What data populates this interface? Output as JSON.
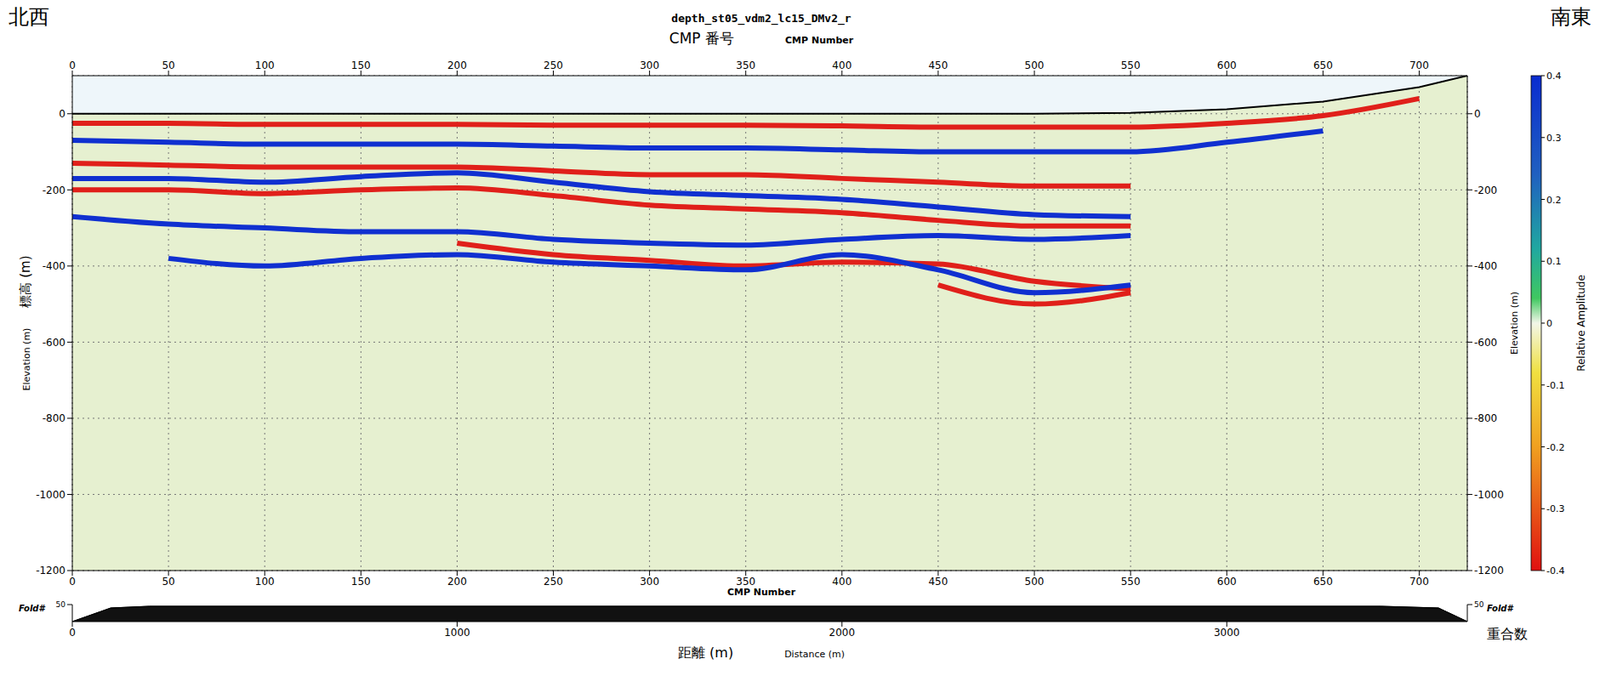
{
  "chart_data": {
    "type": "line",
    "title": "depth_st05_vdm2_lc15_DMv2_r",
    "annotations": {
      "left": "北西",
      "right": "南東"
    },
    "x_label": [
      "CMP 番号",
      "CMP Number"
    ],
    "y_label": [
      "標高 (m)",
      "Elevation (m)"
    ],
    "y2_label": "Elevation (m)",
    "x": [
      0,
      50,
      100,
      150,
      200,
      250,
      300,
      350,
      400,
      450,
      500,
      550,
      600,
      650,
      700,
      725
    ],
    "xlim": [
      0,
      725
    ],
    "xticks": [
      0,
      50,
      100,
      150,
      200,
      250,
      300,
      350,
      400,
      450,
      500,
      550,
      600,
      650,
      700
    ],
    "ylim": [
      -1200,
      100
    ],
    "yticks": [
      0,
      -200,
      -400,
      -600,
      -800,
      -1000,
      -1200
    ],
    "grid": true,
    "surface": {
      "color": "#000000",
      "values": [
        0,
        0,
        0,
        0,
        0,
        0,
        0,
        0,
        0,
        0,
        0,
        2,
        12,
        32,
        70,
        100
      ]
    },
    "series": [
      {
        "color": "#e0201a",
        "values": [
          -25,
          -25,
          -28,
          -28,
          -28,
          -30,
          -30,
          -30,
          -32,
          -35,
          -35,
          -35,
          -25,
          -5,
          40,
          null
        ]
      },
      {
        "color": "#1030d0",
        "values": [
          -70,
          -75,
          -80,
          -80,
          -80,
          -85,
          -90,
          -90,
          -95,
          -100,
          -100,
          -100,
          -75,
          -45,
          null,
          null
        ]
      },
      {
        "color": "#e0201a",
        "values": [
          -130,
          -135,
          -140,
          -140,
          -140,
          -150,
          -160,
          -160,
          -170,
          -180,
          -190,
          -190,
          null,
          null,
          null,
          null
        ]
      },
      {
        "color": "#1030d0",
        "values": [
          -170,
          -170,
          -180,
          -165,
          -155,
          -180,
          -205,
          -215,
          -225,
          -245,
          -265,
          -270,
          null,
          null,
          null,
          null
        ]
      },
      {
        "color": "#e0201a",
        "values": [
          -200,
          -200,
          -210,
          -200,
          -195,
          -215,
          -240,
          -250,
          -260,
          -280,
          -295,
          -295,
          null,
          null,
          null,
          null
        ]
      },
      {
        "color": "#1030d0",
        "values": [
          -270,
          -290,
          -300,
          -310,
          -310,
          -330,
          -340,
          -345,
          -330,
          -320,
          -330,
          -320,
          null,
          null,
          null,
          null
        ]
      },
      {
        "color": "#e0201a",
        "values": [
          null,
          null,
          null,
          null,
          -340,
          -370,
          -385,
          -400,
          -390,
          -395,
          -440,
          -460,
          null,
          null,
          null,
          null
        ]
      },
      {
        "color": "#1030d0",
        "values": [
          null,
          -380,
          -400,
          -380,
          -370,
          -390,
          -400,
          -410,
          -370,
          -410,
          -470,
          -450,
          null,
          null,
          null,
          null
        ]
      },
      {
        "color": "#e0201a",
        "values": [
          null,
          null,
          null,
          null,
          null,
          null,
          null,
          null,
          null,
          -450,
          -500,
          -470,
          null,
          null,
          null,
          null
        ]
      }
    ],
    "colorbar": {
      "label": "Relative Amplitude",
      "range": [
        -0.4,
        0.4
      ],
      "ticks": [
        0.4,
        0.3,
        0.2,
        0.1,
        0,
        -0.1,
        -0.2,
        -0.3,
        -0.4
      ]
    },
    "fold": {
      "label": "Fold#",
      "label2": "重合数",
      "x_label": [
        "距離 (m)",
        "Distance (m)"
      ],
      "x": [
        0,
        100,
        200,
        3400,
        3550,
        3625
      ],
      "values": [
        0,
        40,
        45,
        45,
        40,
        0
      ],
      "xlim": [
        0,
        3625
      ],
      "xticks": [
        0,
        1000,
        2000,
        3000
      ],
      "ylim": [
        0,
        50
      ],
      "yticks": [
        50
      ]
    }
  }
}
